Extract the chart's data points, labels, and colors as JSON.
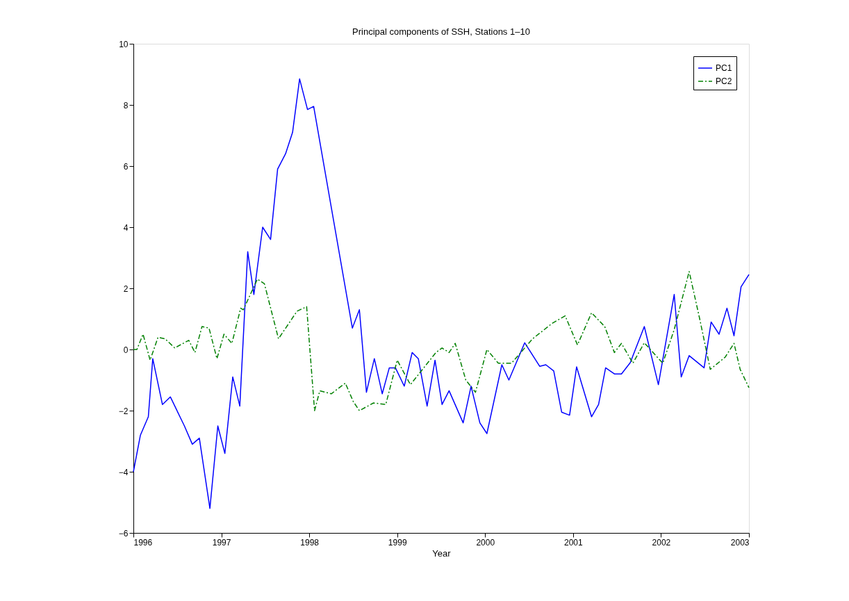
{
  "chart_data": {
    "type": "line",
    "title": "Principal components of SSH, Stations 1–10",
    "xlabel": "Year",
    "xlim": [
      1996,
      2003
    ],
    "xticks": [
      1996,
      1997,
      1998,
      1999,
      2000,
      2001,
      2002,
      2003
    ],
    "ylim": [
      -6,
      10
    ],
    "yticks": [
      -6,
      -4,
      -2,
      0,
      2,
      4,
      6,
      8,
      10
    ],
    "grid": false,
    "legend": "top right",
    "marker": "none",
    "series": [
      {
        "name": "PC1",
        "color": "#0000ff",
        "line_style": "solid",
        "x": [
          1996.0,
          1996.08,
          1996.17,
          1996.22,
          1996.33,
          1996.42,
          1996.58,
          1996.67,
          1996.75,
          1996.87,
          1996.96,
          1997.04,
          1997.13,
          1997.21,
          1997.3,
          1997.37,
          1997.47,
          1997.56,
          1997.64,
          1997.73,
          1997.81,
          1997.89,
          1997.98,
          1998.05,
          1998.49,
          1998.57,
          1998.65,
          1998.74,
          1998.83,
          1998.91,
          1998.98,
          1999.08,
          1999.17,
          1999.24,
          1999.34,
          1999.43,
          1999.51,
          1999.59,
          1999.75,
          1999.84,
          1999.94,
          2000.02,
          2000.19,
          2000.27,
          2000.45,
          2000.62,
          2000.69,
          2000.78,
          2000.87,
          2000.96,
          2001.04,
          2001.21,
          2001.29,
          2001.37,
          2001.47,
          2001.55,
          2001.65,
          2001.81,
          2001.97,
          2002.15,
          2002.23,
          2002.32,
          2002.49,
          2002.57,
          2002.66,
          2002.75,
          2002.83,
          2002.91,
          2003.0
        ],
        "values": [
          -4.0,
          -2.8,
          -2.2,
          -0.3,
          -1.8,
          -1.55,
          -2.5,
          -3.1,
          -2.9,
          -5.2,
          -2.5,
          -3.4,
          -0.9,
          -1.85,
          3.2,
          1.8,
          4.0,
          3.6,
          5.9,
          6.4,
          7.1,
          8.85,
          7.85,
          7.95,
          0.7,
          1.3,
          -1.4,
          -0.3,
          -1.45,
          -0.6,
          -0.6,
          -1.2,
          -0.1,
          -0.3,
          -1.85,
          -0.35,
          -1.8,
          -1.35,
          -2.4,
          -1.2,
          -2.4,
          -2.75,
          -0.5,
          -1.0,
          0.22,
          -0.55,
          -0.5,
          -0.7,
          -2.05,
          -2.15,
          -0.57,
          -2.2,
          -1.8,
          -0.6,
          -0.8,
          -0.8,
          -0.43,
          0.75,
          -1.15,
          1.8,
          -0.9,
          -0.2,
          -0.6,
          0.9,
          0.5,
          1.35,
          0.45,
          2.05,
          2.45
        ]
      },
      {
        "name": "PC2",
        "color": "#008000",
        "line_style": "dashed",
        "x": [
          1996.0,
          1996.04,
          1996.11,
          1996.19,
          1996.28,
          1996.36,
          1996.47,
          1996.63,
          1996.7,
          1996.78,
          1996.86,
          1996.95,
          1997.03,
          1997.12,
          1997.22,
          1997.25,
          1997.41,
          1997.49,
          1997.65,
          1997.86,
          1997.97,
          1998.06,
          1998.12,
          1998.25,
          1998.41,
          1998.5,
          1998.57,
          1998.73,
          1998.87,
          1999.0,
          1999.15,
          1999.44,
          1999.51,
          1999.59,
          1999.66,
          1999.78,
          1999.89,
          2000.02,
          2000.15,
          2000.3,
          2000.54,
          2000.76,
          2000.91,
          2001.05,
          2001.21,
          2001.36,
          2001.47,
          2001.55,
          2001.68,
          2001.81,
          2002.02,
          2002.15,
          2002.32,
          2002.44,
          2002.56,
          2002.73,
          2002.83,
          2002.9,
          2003.0
        ],
        "values": [
          0.0,
          0.0,
          0.5,
          -0.35,
          0.4,
          0.35,
          0.05,
          0.3,
          -0.1,
          0.75,
          0.7,
          -0.3,
          0.5,
          0.2,
          1.35,
          1.3,
          2.3,
          2.15,
          0.35,
          1.25,
          1.4,
          -2.0,
          -1.35,
          -1.45,
          -1.1,
          -1.7,
          -2.0,
          -1.75,
          -1.8,
          -0.35,
          -1.15,
          -0.1,
          0.05,
          -0.1,
          0.2,
          -1.0,
          -1.4,
          0.0,
          -0.45,
          -0.45,
          0.35,
          0.85,
          1.1,
          0.15,
          1.2,
          0.75,
          -0.1,
          0.2,
          -0.45,
          0.22,
          -0.45,
          0.65,
          2.55,
          1.0,
          -0.65,
          -0.25,
          0.2,
          -0.65,
          -1.25
        ]
      }
    ]
  }
}
